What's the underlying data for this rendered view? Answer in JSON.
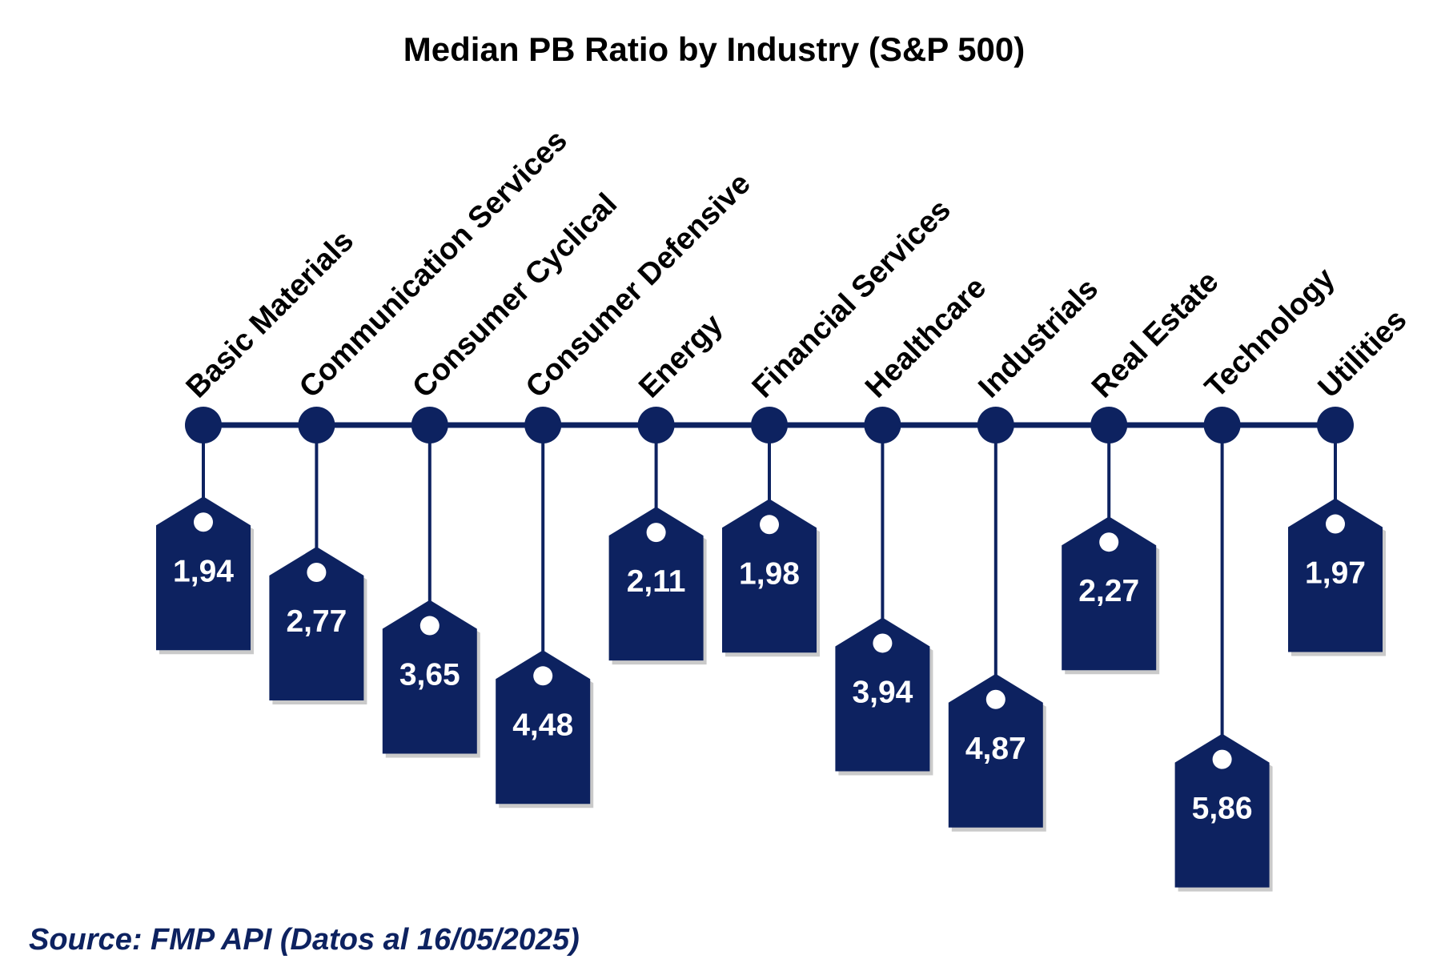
{
  "chart_data": {
    "type": "bar",
    "title": "Median PB Ratio by Industry (S&P 500)",
    "categories": [
      "Basic Materials",
      "Communication Services",
      "Consumer Cyclical",
      "Consumer Defensive",
      "Energy",
      "Financial Services",
      "Healthcare",
      "Industrials",
      "Real Estate",
      "Technology",
      "Utilities"
    ],
    "values": [
      1.94,
      2.77,
      3.65,
      4.48,
      2.11,
      1.98,
      3.94,
      4.87,
      2.27,
      5.86,
      1.97
    ],
    "value_labels": [
      "1,94",
      "2,77",
      "3,65",
      "4,48",
      "2,11",
      "1,98",
      "3,94",
      "4,87",
      "2,27",
      "5,86",
      "1,97"
    ],
    "source": "Source: FMP API (Datos al 16/05/2025)",
    "colors": {
      "tag": "#0d2260",
      "line": "#0d2260",
      "shadow": "#b8b8b8"
    }
  }
}
